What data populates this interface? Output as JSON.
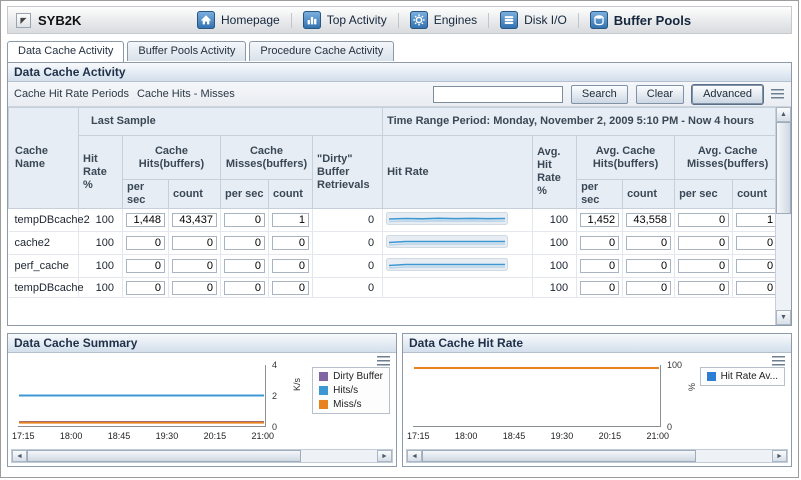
{
  "header": {
    "app_title": "SYB2K",
    "nav_items": [
      {
        "label": "Homepage",
        "icon": "home-icon"
      },
      {
        "label": "Top Activity",
        "icon": "bar-chart-icon"
      },
      {
        "label": "Engines",
        "icon": "gear-icon"
      },
      {
        "label": "Disk I/O",
        "icon": "disk-icon"
      },
      {
        "label": "Buffer Pools",
        "icon": "buffer-pools-icon"
      }
    ]
  },
  "tabs": [
    {
      "label": "Data Cache Activity",
      "active": true
    },
    {
      "label": "Buffer Pools Activity",
      "active": false
    },
    {
      "label": "Procedure Cache Activity",
      "active": false
    }
  ],
  "data_cache_panel": {
    "title": "Data Cache Activity",
    "filter_links": [
      "Cache Hit Rate Periods",
      "Cache Hits - Misses"
    ],
    "search_input": {
      "value": "",
      "placeholder": ""
    },
    "buttons": {
      "search": "Search",
      "clear": "Clear",
      "advanced": "Advanced"
    }
  },
  "table": {
    "group_header": {
      "last_sample": "Last Sample",
      "time_range": "Time Range Period: Monday, November 2, 2009  5:10 PM - Now  4 hours"
    },
    "columns": {
      "cache_name": "Cache Name",
      "hit_rate_pct": "Hit Rate %",
      "cache_hits": "Cache Hits(buffers)",
      "cache_misses": "Cache Misses(buffers)",
      "dirty": "\"Dirty\" Buffer Retrievals",
      "hit_rate": "Hit Rate",
      "avg_hit_rate_pct": "Avg. Hit Rate %",
      "avg_cache_hits": "Avg. Cache Hits(buffers)",
      "avg_cache_misses": "Avg. Cache Misses(buffers)",
      "per_sec": "per sec",
      "count": "count"
    },
    "rows": [
      {
        "cache_name": "tempDBcache2",
        "hit_rate_pct": "100",
        "hits_per_sec": "1,448",
        "hits_count": "43,437",
        "misses_per_sec": "0",
        "misses_count": "1",
        "dirty": "0",
        "sparkline": [
          50,
          55,
          52,
          57,
          53,
          56,
          53,
          55
        ],
        "avg_hit_rate_pct": "100",
        "avg_hits_per_sec": "1,452",
        "avg_hits_count": "43,558",
        "avg_misses_per_sec": "0",
        "avg_misses_count": "1"
      },
      {
        "cache_name": "cache2",
        "hit_rate_pct": "100",
        "hits_per_sec": "0",
        "hits_count": "0",
        "misses_per_sec": "0",
        "misses_count": "0",
        "dirty": "0",
        "sparkline": [
          45,
          55,
          55,
          55,
          55,
          55,
          55,
          55
        ],
        "avg_hit_rate_pct": "100",
        "avg_hits_per_sec": "0",
        "avg_hits_count": "0",
        "avg_misses_per_sec": "0",
        "avg_misses_count": "0"
      },
      {
        "cache_name": "perf_cache",
        "hit_rate_pct": "100",
        "hits_per_sec": "0",
        "hits_count": "0",
        "misses_per_sec": "0",
        "misses_count": "0",
        "dirty": "0",
        "sparkline": [
          45,
          55,
          55,
          55,
          55,
          55,
          55,
          55
        ],
        "avg_hit_rate_pct": "100",
        "avg_hits_per_sec": "0",
        "avg_hits_count": "0",
        "avg_misses_per_sec": "0",
        "avg_misses_count": "0"
      },
      {
        "cache_name": "tempDBcache",
        "hit_rate_pct": "100",
        "hits_per_sec": "0",
        "hits_count": "0",
        "misses_per_sec": "0",
        "misses_count": "0",
        "dirty": "0",
        "sparkline": null,
        "avg_hit_rate_pct": "100",
        "avg_hits_per_sec": "0",
        "avg_hits_count": "0",
        "avg_misses_per_sec": "0",
        "avg_misses_count": "0"
      }
    ]
  },
  "chart_data": [
    {
      "type": "line",
      "title": "Data Cache Summary",
      "x": [
        "17:15",
        "18:00",
        "18:45",
        "19:30",
        "20:15",
        "21:00"
      ],
      "xlabel": "",
      "ylabel": "K/s",
      "ylim": [
        0,
        4
      ],
      "yticks": [
        0,
        2,
        4
      ],
      "grid": false,
      "legend_position": "right",
      "series": [
        {
          "name": "Dirty Buffer",
          "color": "#8064a2",
          "values": [
            0.07,
            0.07,
            0.07,
            0.07,
            0.07,
            0.07
          ]
        },
        {
          "name": "Hits/s",
          "color": "#3d97d3",
          "values": [
            2.0,
            2.0,
            2.0,
            2.0,
            2.0,
            2.0
          ]
        },
        {
          "name": "Miss/s",
          "color": "#e8821e",
          "values": [
            0.03,
            0.03,
            0.03,
            0.03,
            0.03,
            0.03
          ]
        }
      ]
    },
    {
      "type": "line",
      "title": "Data Cache Hit Rate",
      "x": [
        "17:15",
        "18:00",
        "18:45",
        "19:30",
        "20:15",
        "21:00"
      ],
      "xlabel": "",
      "ylabel": "%",
      "ylim": [
        0,
        100
      ],
      "yticks": [
        0,
        100
      ],
      "grid": false,
      "legend_position": "right",
      "series": [
        {
          "name": "Hit Rate Av...",
          "color": "#e8821e",
          "legend_color": "#2d7fd3",
          "values": [
            100,
            100,
            100,
            100,
            100,
            100
          ]
        }
      ]
    }
  ],
  "icons": {
    "collapse": "◤",
    "scroll_up": "▲",
    "scroll_down": "▼",
    "scroll_left": "◄",
    "scroll_right": "►"
  }
}
